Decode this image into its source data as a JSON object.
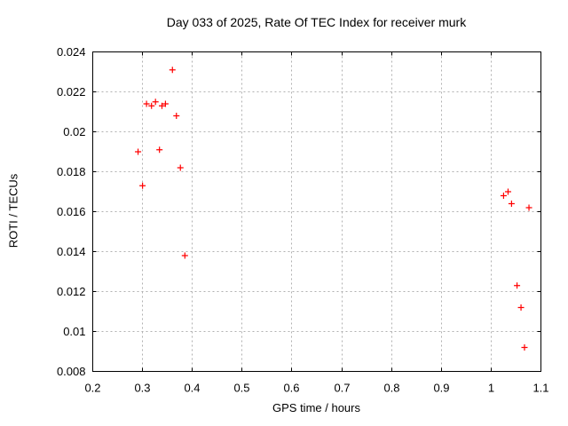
{
  "chart_data": {
    "type": "scatter",
    "title": "Day 033 of 2025, Rate Of TEC Index for receiver murk",
    "xlabel": "GPS time / hours",
    "ylabel": "ROTI / TECUs",
    "xlim": [
      0.2,
      1.1
    ],
    "ylim": [
      0.008,
      0.024
    ],
    "x_tick_values": [
      0.2,
      0.3,
      0.4,
      0.5,
      0.6,
      0.7,
      0.8,
      0.9,
      1.0,
      1.1
    ],
    "x_tick_labels": [
      "0.2",
      "0.3",
      "0.4",
      "0.5",
      "0.6",
      "0.7",
      "0.8",
      "0.9",
      "1",
      "1.1"
    ],
    "y_tick_values": [
      0.008,
      0.01,
      0.012,
      0.014,
      0.016,
      0.018,
      0.02,
      0.022,
      0.024
    ],
    "y_tick_labels": [
      "0.008",
      "0.01",
      "0.012",
      "0.014",
      "0.016",
      "0.018",
      "0.02",
      "0.022",
      "0.024"
    ],
    "grid": true,
    "legend_position": "none",
    "marker": "plus",
    "colors": {
      "marker": "#ff0000",
      "grid": "#b0b0b0",
      "border": "#000000",
      "text": "#000000",
      "background": "#ffffff"
    },
    "series": [
      {
        "name": "ROTI",
        "x": [
          0.291,
          0.3,
          0.308,
          0.318,
          0.326,
          0.334,
          0.339,
          0.346,
          0.36,
          0.368,
          0.376,
          0.385,
          1.025,
          1.034,
          1.041,
          1.052,
          1.06,
          1.067,
          1.076
        ],
        "y": [
          0.019,
          0.0173,
          0.0214,
          0.0213,
          0.0215,
          0.0191,
          0.0213,
          0.0214,
          0.0231,
          0.0208,
          0.0182,
          0.0138,
          0.0168,
          0.017,
          0.0164,
          0.0123,
          0.0112,
          0.0092,
          0.0162
        ]
      }
    ]
  }
}
